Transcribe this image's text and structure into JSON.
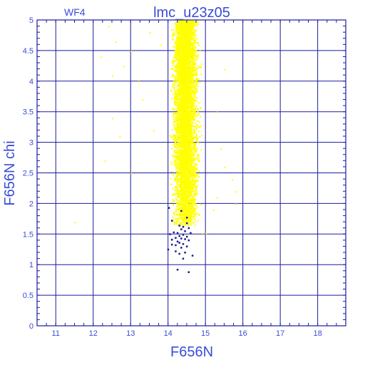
{
  "chart_data": {
    "type": "scatter",
    "title": "lmc_u23z05",
    "chip_label": "WF4",
    "xlabel": "F656N",
    "ylabel": "F656N  chi",
    "xlim": [
      10.5,
      18.75
    ],
    "ylim": [
      0,
      5
    ],
    "xticks": [
      11,
      12,
      13,
      14,
      15,
      16,
      17,
      18
    ],
    "yticks": [
      0,
      0.5,
      1,
      1.5,
      2,
      2.5,
      3,
      3.5,
      4,
      4.5,
      5
    ],
    "xtick_labels": [
      "11",
      "12",
      "13",
      "14",
      "15",
      "16",
      "17",
      "18"
    ],
    "ytick_labels": [
      "0",
      "0.5",
      "1",
      "1.5",
      "2",
      "2.5",
      "3",
      "3.5",
      "4",
      "4.5",
      "5"
    ],
    "grid": true,
    "series": [
      {
        "color": "#ffff00",
        "dense_region": {
          "x_range": [
            14.0,
            14.95
          ],
          "y_range": [
            1.65,
            5.0
          ],
          "x_center": 14.45,
          "approx_count": 6000
        },
        "outliers": [
          {
            "x": 11.5,
            "y": 1.7
          },
          {
            "x": 12.2,
            "y": 4.4
          },
          {
            "x": 12.3,
            "y": 2.7
          },
          {
            "x": 12.4,
            "y": 4.9
          },
          {
            "x": 12.5,
            "y": 4.1
          },
          {
            "x": 12.5,
            "y": 3.4
          },
          {
            "x": 12.6,
            "y": 4.65
          },
          {
            "x": 12.7,
            "y": 3.1
          },
          {
            "x": 12.8,
            "y": 4.25
          },
          {
            "x": 13.0,
            "y": 4.5
          },
          {
            "x": 13.0,
            "y": 2.5
          },
          {
            "x": 13.2,
            "y": 4.0
          },
          {
            "x": 13.3,
            "y": 3.7
          },
          {
            "x": 13.5,
            "y": 4.8
          },
          {
            "x": 13.6,
            "y": 3.2
          },
          {
            "x": 13.8,
            "y": 4.6
          },
          {
            "x": 15.3,
            "y": 3.5
          },
          {
            "x": 15.4,
            "y": 2.9
          },
          {
            "x": 15.5,
            "y": 2.6
          },
          {
            "x": 15.5,
            "y": 4.2
          },
          {
            "x": 15.7,
            "y": 2.4
          },
          {
            "x": 15.8,
            "y": 2.0
          },
          {
            "x": 15.8,
            "y": 2.2
          },
          {
            "x": 15.2,
            "y": 1.9
          },
          {
            "x": 15.3,
            "y": 2.1
          },
          {
            "x": 14.9,
            "y": 1.5
          },
          {
            "x": 15.0,
            "y": 1.52
          }
        ]
      },
      {
        "color": "#1a1a8c",
        "points": [
          {
            "x": 14.02,
            "y": 1.93
          },
          {
            "x": 14.35,
            "y": 1.88
          },
          {
            "x": 14.5,
            "y": 1.77
          },
          {
            "x": 14.1,
            "y": 1.72
          },
          {
            "x": 14.5,
            "y": 1.68
          },
          {
            "x": 14.3,
            "y": 1.64
          },
          {
            "x": 14.4,
            "y": 1.62
          },
          {
            "x": 14.55,
            "y": 1.6
          },
          {
            "x": 14.35,
            "y": 1.58
          },
          {
            "x": 14.45,
            "y": 1.55
          },
          {
            "x": 14.15,
            "y": 1.53
          },
          {
            "x": 14.25,
            "y": 1.52
          },
          {
            "x": 14.6,
            "y": 1.52
          },
          {
            "x": 14.05,
            "y": 1.5
          },
          {
            "x": 14.4,
            "y": 1.49
          },
          {
            "x": 14.3,
            "y": 1.47
          },
          {
            "x": 14.5,
            "y": 1.46
          },
          {
            "x": 14.2,
            "y": 1.44
          },
          {
            "x": 14.35,
            "y": 1.43
          },
          {
            "x": 14.45,
            "y": 1.42
          },
          {
            "x": 14.1,
            "y": 1.41
          },
          {
            "x": 14.55,
            "y": 1.4
          },
          {
            "x": 14.25,
            "y": 1.38
          },
          {
            "x": 14.3,
            "y": 1.36
          },
          {
            "x": 14.4,
            "y": 1.34
          },
          {
            "x": 14.1,
            "y": 1.33
          },
          {
            "x": 14.2,
            "y": 1.32
          },
          {
            "x": 14.5,
            "y": 1.3
          },
          {
            "x": 14.35,
            "y": 1.28
          },
          {
            "x": 14.0,
            "y": 1.25
          },
          {
            "x": 14.2,
            "y": 1.22
          },
          {
            "x": 14.45,
            "y": 1.2
          },
          {
            "x": 14.3,
            "y": 1.18
          },
          {
            "x": 14.65,
            "y": 1.15
          },
          {
            "x": 14.4,
            "y": 1.1
          },
          {
            "x": 14.25,
            "y": 0.92
          },
          {
            "x": 14.55,
            "y": 0.88
          }
        ]
      }
    ]
  },
  "colors": {
    "axis": "#1a1aa0",
    "text": "#3a4bd8",
    "background": "#ffffff"
  }
}
